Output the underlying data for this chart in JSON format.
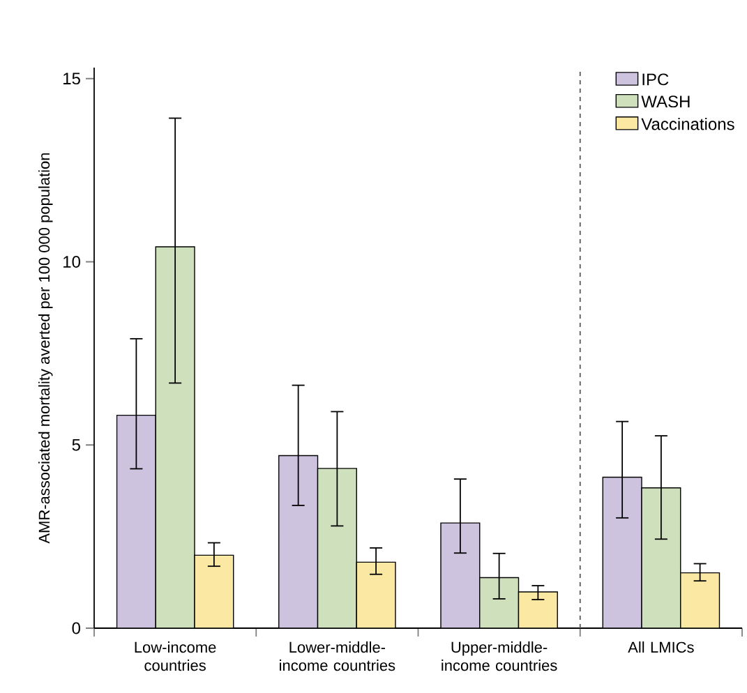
{
  "chart_data": {
    "type": "bar",
    "ylabel": "AMR-associated mortality averted per 100 000 population",
    "categories": [
      "Low-income countries",
      "Lower-middle-income countries",
      "Upper-middle-income countries",
      "All LMICs"
    ],
    "series": [
      {
        "name": "IPC",
        "color": "#cdc3df",
        "values": [
          5.81,
          4.71,
          2.87,
          4.12
        ],
        "errors": [
          [
            4.35,
            7.9
          ],
          [
            3.35,
            6.63
          ],
          [
            2.05,
            4.07
          ],
          [
            3.01,
            5.64
          ]
        ]
      },
      {
        "name": "WASH",
        "color": "#cfe0bd",
        "values": [
          10.41,
          4.36,
          1.38,
          3.83
        ],
        "errors": [
          [
            6.69,
            13.92
          ],
          [
            2.79,
            5.91
          ],
          [
            0.8,
            2.04
          ],
          [
            2.43,
            5.25
          ]
        ]
      },
      {
        "name": "Vaccinations",
        "color": "#fbe9a3",
        "values": [
          1.99,
          1.8,
          0.99,
          1.51
        ],
        "errors": [
          [
            1.69,
            2.33
          ],
          [
            1.47,
            2.19
          ],
          [
            0.78,
            1.16
          ],
          [
            1.29,
            1.76
          ]
        ]
      }
    ],
    "ylim": [
      0,
      15.3
    ],
    "yticks": [
      0,
      5,
      10,
      15
    ],
    "grid": false,
    "legend": "top right"
  }
}
